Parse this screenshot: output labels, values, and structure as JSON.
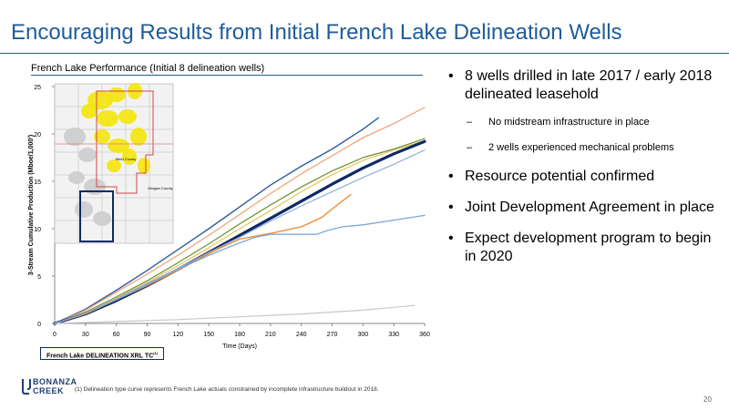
{
  "slide": {
    "title": "Encouraging Results from Initial French Lake Delineation Wells",
    "page_number": "20",
    "footnote": "(1)    Delineation type curve represents French Lake actuals constrained by incomplete infrastructure buildout in 2018.",
    "logo_text": [
      "BONANZA",
      "CREEK"
    ],
    "accent_color": "#1f5c99"
  },
  "chart_caption": "French Lake Performance (Initial 8 delineation wells)",
  "type_curve_label": "French Lake DELINEATION XRL TC",
  "type_curve_footnote_marker": "(1)",
  "bullets": [
    {
      "level": 1,
      "text": "8 wells drilled in late 2017 / early 2018 delineated leasehold"
    },
    {
      "level": 2,
      "text": "No midstream infrastructure in place"
    },
    {
      "level": 2,
      "text": "2 wells experienced mechanical problems"
    },
    {
      "level": 1,
      "text": "Resource potential confirmed"
    },
    {
      "level": 1,
      "text": "Joint Development Agreement in place"
    },
    {
      "level": 1,
      "text": "Expect development program to begin in 2020"
    }
  ],
  "inset_map": {
    "labels": [
      "Weld County",
      "Morgan County"
    ],
    "highlight_color": "#f4e60a",
    "boundary_color": "#d64545",
    "box_color": "#0d2a66"
  },
  "chart_data": {
    "type": "line",
    "title": "",
    "xlabel": "Time (Days)",
    "ylabel": "3-Stream Cumulative Production (Mboe/1,000')",
    "xlim": [
      0,
      360
    ],
    "ylim": [
      0,
      25
    ],
    "xticks": [
      0,
      30,
      60,
      90,
      120,
      150,
      180,
      210,
      240,
      270,
      300,
      330,
      360
    ],
    "yticks": [
      0,
      5,
      10,
      15,
      20,
      25
    ],
    "grid": false,
    "series": [
      {
        "color": "#2e5c9e",
        "width": 1.4,
        "points": [
          [
            0,
            0
          ],
          [
            30,
            1.5
          ],
          [
            60,
            3.5
          ],
          [
            90,
            5.6
          ],
          [
            120,
            7.8
          ],
          [
            150,
            10.0
          ],
          [
            180,
            12.3
          ],
          [
            210,
            14.6
          ],
          [
            240,
            16.6
          ],
          [
            270,
            18.4
          ],
          [
            300,
            20.5
          ],
          [
            315,
            21.7
          ]
        ]
      },
      {
        "color": "#f0a070",
        "width": 1.2,
        "points": [
          [
            0,
            0
          ],
          [
            30,
            1.4
          ],
          [
            60,
            3.3
          ],
          [
            90,
            5.2
          ],
          [
            120,
            7.2
          ],
          [
            150,
            9.3
          ],
          [
            180,
            11.5
          ],
          [
            210,
            13.7
          ],
          [
            240,
            15.8
          ],
          [
            270,
            17.7
          ],
          [
            300,
            19.6
          ],
          [
            330,
            21.1
          ],
          [
            360,
            22.8
          ]
        ]
      },
      {
        "color": "#6a8f2a",
        "width": 1.2,
        "points": [
          [
            0,
            0
          ],
          [
            30,
            1.2
          ],
          [
            60,
            2.8
          ],
          [
            90,
            4.5
          ],
          [
            120,
            6.4
          ],
          [
            150,
            8.4
          ],
          [
            180,
            10.5
          ],
          [
            210,
            12.5
          ],
          [
            240,
            14.4
          ],
          [
            270,
            16.1
          ],
          [
            300,
            17.5
          ],
          [
            330,
            18.4
          ],
          [
            360,
            19.5
          ]
        ]
      },
      {
        "color": "#e8c45a",
        "width": 1.2,
        "points": [
          [
            0,
            0
          ],
          [
            30,
            1.1
          ],
          [
            60,
            2.7
          ],
          [
            90,
            4.3
          ],
          [
            120,
            6.1
          ],
          [
            150,
            8.0
          ],
          [
            180,
            10.0
          ],
          [
            210,
            11.9
          ],
          [
            240,
            13.9
          ],
          [
            270,
            15.7
          ],
          [
            300,
            17.2
          ],
          [
            330,
            18.3
          ],
          [
            360,
            19.3
          ]
        ]
      },
      {
        "color": "#0d2a66",
        "width": 3.2,
        "points": [
          [
            0,
            0
          ],
          [
            30,
            1.0
          ],
          [
            60,
            2.4
          ],
          [
            90,
            4.0
          ],
          [
            120,
            5.7
          ],
          [
            150,
            7.5
          ],
          [
            180,
            9.3
          ],
          [
            210,
            11.1
          ],
          [
            240,
            12.9
          ],
          [
            270,
            14.7
          ],
          [
            300,
            16.4
          ],
          [
            330,
            17.9
          ],
          [
            360,
            19.2
          ]
        ]
      },
      {
        "color": "#8fb0dd",
        "width": 1.2,
        "points": [
          [
            0,
            0
          ],
          [
            30,
            1.1
          ],
          [
            60,
            2.6
          ],
          [
            90,
            4.2
          ],
          [
            120,
            5.8
          ],
          [
            150,
            7.5
          ],
          [
            180,
            9.1
          ],
          [
            210,
            10.8
          ],
          [
            240,
            12.4
          ],
          [
            270,
            13.9
          ],
          [
            300,
            15.4
          ],
          [
            330,
            16.8
          ],
          [
            360,
            18.3
          ]
        ]
      },
      {
        "color": "#f08a2a",
        "width": 1.3,
        "points": [
          [
            0,
            0
          ],
          [
            30,
            1.0
          ],
          [
            60,
            2.5
          ],
          [
            90,
            4.0
          ],
          [
            120,
            5.6
          ],
          [
            150,
            7.4
          ],
          [
            180,
            8.9
          ],
          [
            210,
            9.5
          ],
          [
            240,
            10.2
          ],
          [
            260,
            11.2
          ],
          [
            275,
            12.5
          ],
          [
            288,
            13.6
          ]
        ]
      },
      {
        "color": "#7ea6d8",
        "width": 1.3,
        "points": [
          [
            0,
            0
          ],
          [
            30,
            1.1
          ],
          [
            60,
            2.5
          ],
          [
            90,
            4.1
          ],
          [
            120,
            5.7
          ],
          [
            150,
            7.2
          ],
          [
            180,
            8.5
          ],
          [
            195,
            9.1
          ],
          [
            210,
            9.4
          ],
          [
            230,
            9.4
          ],
          [
            255,
            9.4
          ],
          [
            265,
            9.8
          ],
          [
            280,
            10.2
          ],
          [
            300,
            10.4
          ],
          [
            330,
            10.9
          ],
          [
            360,
            11.4
          ]
        ]
      },
      {
        "color": "#c8c8c8",
        "width": 1.2,
        "points": [
          [
            0,
            0
          ],
          [
            60,
            0.2
          ],
          [
            120,
            0.4
          ],
          [
            180,
            0.7
          ],
          [
            240,
            1.0
          ],
          [
            300,
            1.4
          ],
          [
            330,
            1.7
          ],
          [
            350,
            1.9
          ]
        ]
      }
    ]
  }
}
